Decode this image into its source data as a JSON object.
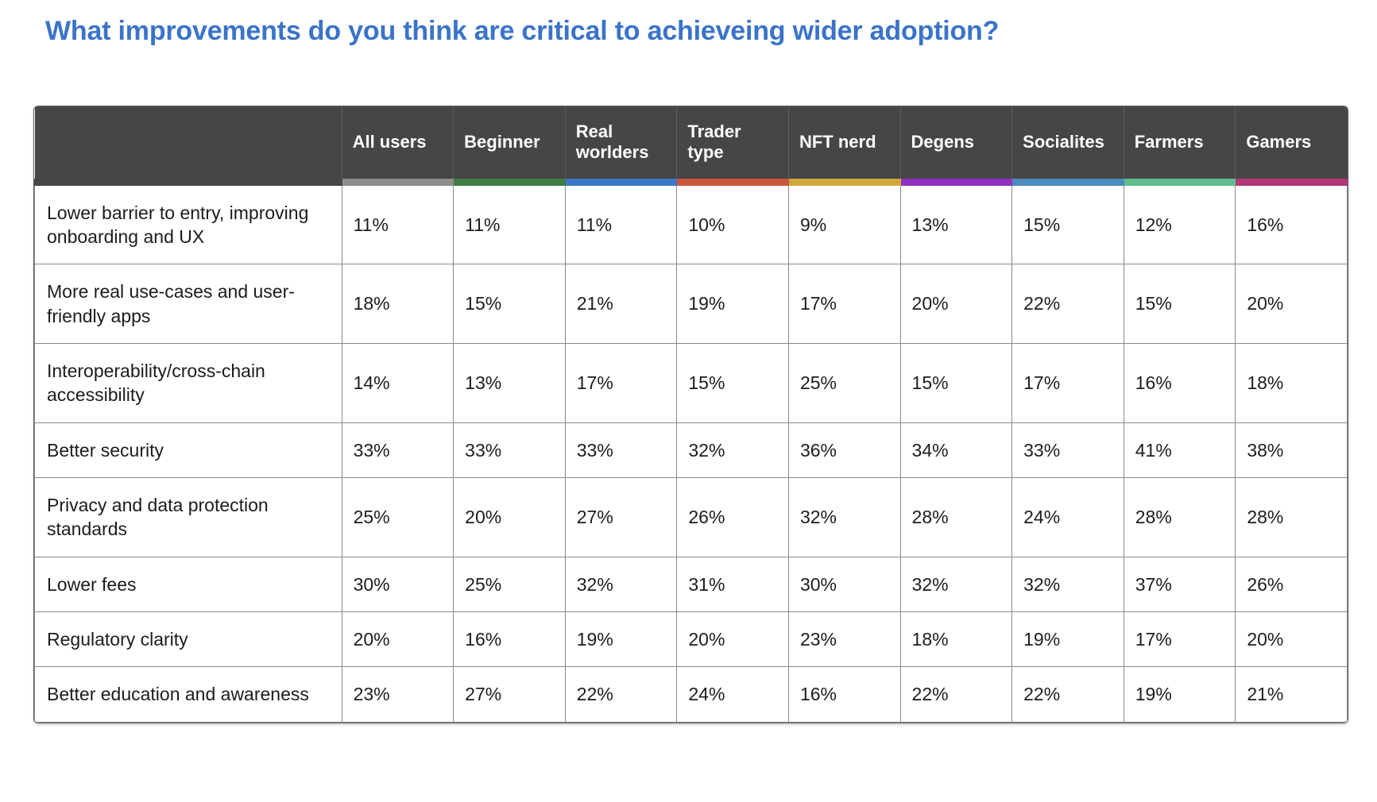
{
  "page": {
    "title": "What improvements do you think are critical to achieveing wider adoption?",
    "title_color": "#3a73c9"
  },
  "table": {
    "header_bg": "#464646",
    "columns": [
      {
        "label": "All users",
        "color": "#8d8d8d"
      },
      {
        "label": "Beginner",
        "color": "#3f7d43"
      },
      {
        "label": "Real worlders",
        "color": "#3c77c9"
      },
      {
        "label": "Trader type",
        "color": "#c9573d"
      },
      {
        "label": "NFT nerd",
        "color": "#d1a93b"
      },
      {
        "label": "Degens",
        "color": "#9230c0"
      },
      {
        "label": "Socialites",
        "color": "#4c8bbc"
      },
      {
        "label": "Farmers",
        "color": "#5fbe8d"
      },
      {
        "label": "Gamers",
        "color": "#b23779"
      }
    ],
    "rows": [
      {
        "label": "Lower barrier to entry, improving onboarding and UX",
        "values": [
          "11%",
          "11%",
          "11%",
          "10%",
          "9%",
          "13%",
          "15%",
          "12%",
          "16%"
        ]
      },
      {
        "label": "More real use-cases and user-friendly apps",
        "values": [
          "18%",
          "15%",
          "21%",
          "19%",
          "17%",
          "20%",
          "22%",
          "15%",
          "20%"
        ]
      },
      {
        "label": "Interoperability/cross-chain accessibility",
        "values": [
          "14%",
          "13%",
          "17%",
          "15%",
          "25%",
          "15%",
          "17%",
          "16%",
          "18%"
        ]
      },
      {
        "label": "Better security",
        "values": [
          "33%",
          "33%",
          "33%",
          "32%",
          "36%",
          "34%",
          "33%",
          "41%",
          "38%"
        ]
      },
      {
        "label": "Privacy and data protection standards",
        "values": [
          "25%",
          "20%",
          "27%",
          "26%",
          "32%",
          "28%",
          "24%",
          "28%",
          "28%"
        ]
      },
      {
        "label": "Lower fees",
        "values": [
          "30%",
          "25%",
          "32%",
          "31%",
          "30%",
          "32%",
          "32%",
          "37%",
          "26%"
        ]
      },
      {
        "label": "Regulatory clarity",
        "values": [
          "20%",
          "16%",
          "19%",
          "20%",
          "23%",
          "18%",
          "19%",
          "17%",
          "20%"
        ]
      },
      {
        "label": "Better education and awareness",
        "values": [
          "23%",
          "27%",
          "22%",
          "24%",
          "16%",
          "22%",
          "22%",
          "19%",
          "21%"
        ]
      }
    ]
  },
  "chart_data": {
    "type": "table",
    "title": "What improvements do you think are critical to achieveing wider adoption?",
    "categories": [
      "All users",
      "Beginner",
      "Real worlders",
      "Trader type",
      "NFT nerd",
      "Degens",
      "Socialites",
      "Farmers",
      "Gamers"
    ],
    "series": [
      {
        "name": "Lower barrier to entry, improving onboarding and UX",
        "values": [
          11,
          11,
          11,
          10,
          9,
          13,
          15,
          12,
          16
        ]
      },
      {
        "name": "More real use-cases and user-friendly apps",
        "values": [
          18,
          15,
          21,
          19,
          17,
          20,
          22,
          15,
          20
        ]
      },
      {
        "name": "Interoperability/cross-chain accessibility",
        "values": [
          14,
          13,
          17,
          15,
          25,
          15,
          17,
          16,
          18
        ]
      },
      {
        "name": "Better security",
        "values": [
          33,
          33,
          33,
          32,
          36,
          34,
          33,
          41,
          38
        ]
      },
      {
        "name": "Privacy and data protection standards",
        "values": [
          25,
          20,
          27,
          26,
          32,
          28,
          24,
          28,
          28
        ]
      },
      {
        "name": "Lower fees",
        "values": [
          30,
          25,
          32,
          31,
          30,
          32,
          32,
          37,
          26
        ]
      },
      {
        "name": "Regulatory clarity",
        "values": [
          20,
          16,
          19,
          20,
          23,
          18,
          19,
          17,
          20
        ]
      },
      {
        "name": "Better education and awareness",
        "values": [
          23,
          27,
          22,
          24,
          16,
          22,
          22,
          19,
          21
        ]
      }
    ],
    "value_unit": "%",
    "category_colors": [
      "#8d8d8d",
      "#3f7d43",
      "#3c77c9",
      "#c9573d",
      "#d1a93b",
      "#9230c0",
      "#4c8bbc",
      "#5fbe8d",
      "#b23779"
    ]
  }
}
